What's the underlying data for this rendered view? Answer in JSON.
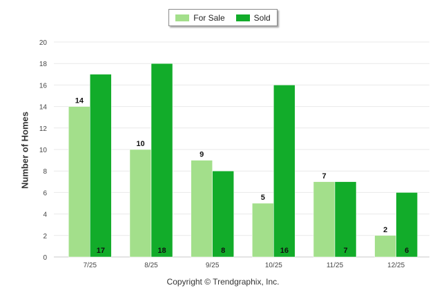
{
  "chart_data": {
    "type": "bar",
    "categories": [
      "7/25",
      "8/25",
      "9/25",
      "10/25",
      "11/25",
      "12/25"
    ],
    "series": [
      {
        "name": "For Sale",
        "values": [
          14,
          10,
          9,
          5,
          7,
          2
        ],
        "color": "#a3df8b"
      },
      {
        "name": "Sold",
        "values": [
          17,
          18,
          8,
          16,
          7,
          6
        ],
        "color": "#12ac2a"
      }
    ],
    "title": "",
    "xlabel": "",
    "ylabel": "Number of Homes",
    "ylim": [
      0,
      20
    ],
    "yticks": [
      "0",
      "2",
      "4",
      "6",
      "8",
      "10",
      "12",
      "14",
      "16",
      "18",
      "20"
    ],
    "grid": true,
    "legend": "top-center"
  },
  "legend": {
    "for_sale": "For Sale",
    "sold": "Sold"
  },
  "credit": "Copyright © Trendgraphix, Inc."
}
